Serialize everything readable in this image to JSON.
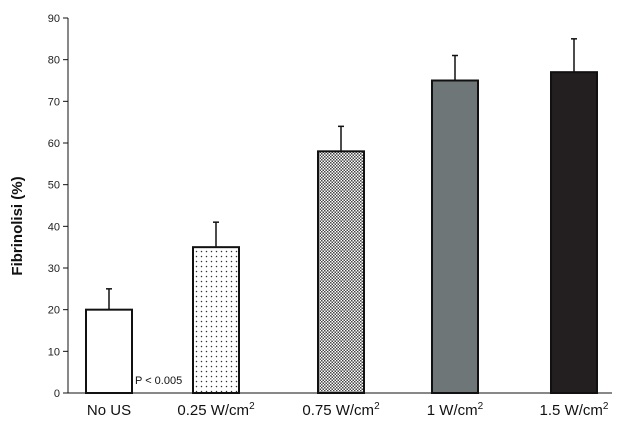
{
  "chart_data": {
    "type": "bar",
    "ylabel": "Fibrinolisi (%)",
    "xlabel": "",
    "ylim": [
      0,
      90
    ],
    "yticks": [
      0,
      10,
      20,
      30,
      40,
      50,
      60,
      70,
      80,
      90
    ],
    "grid": false,
    "categories": [
      {
        "base": "No US",
        "sup": ""
      },
      {
        "base": "0.25 W/cm",
        "sup": "2"
      },
      {
        "base": "0.75 W/cm",
        "sup": "2"
      },
      {
        "base": "1 W/cm",
        "sup": "2"
      },
      {
        "base": "1.5 W/cm",
        "sup": "2"
      }
    ],
    "values": [
      20,
      35,
      58,
      75,
      77
    ],
    "error_upper": [
      5,
      6,
      6,
      6,
      8
    ],
    "bar_fills": [
      "white",
      "fine-dots",
      "dense-dots",
      "gray",
      "black"
    ],
    "colors": {
      "gray": "#6e7678",
      "black": "#231f20"
    },
    "annotation": "P < 0.005"
  }
}
